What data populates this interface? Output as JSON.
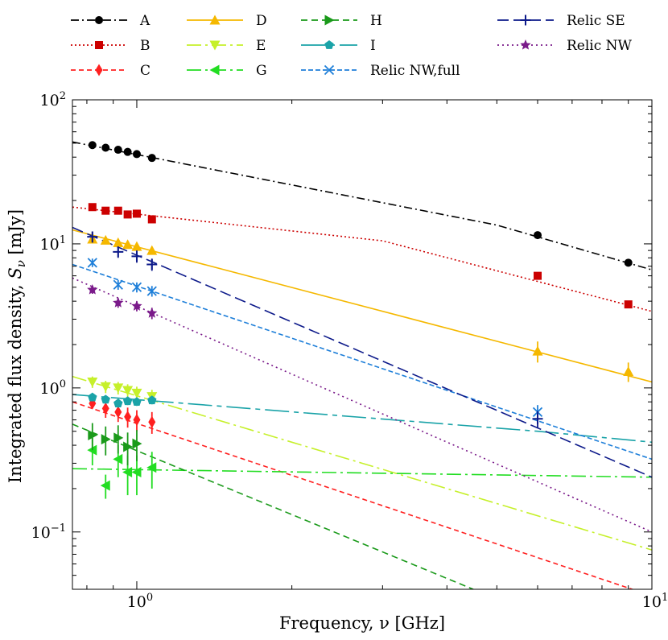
{
  "chart_data": {
    "type": "line",
    "xscale": "log",
    "yscale": "log",
    "xlabel": "Frequency, ν [GHz]",
    "ylabel": "Integrated flux density, S_ν [mJy]",
    "xlim": [
      0.75,
      10
    ],
    "ylim": [
      0.04,
      100
    ],
    "x_ticks": [
      {
        "value": 1,
        "base": "10",
        "exp": "0"
      },
      {
        "value": 10,
        "base": "10",
        "exp": "1"
      }
    ],
    "y_ticks": [
      {
        "value": 0.1,
        "base": "10",
        "exp": "−1"
      },
      {
        "value": 1,
        "base": "10",
        "exp": "0"
      },
      {
        "value": 10,
        "base": "10",
        "exp": "1"
      },
      {
        "value": 100,
        "base": "10",
        "exp": "2"
      }
    ],
    "series": [
      {
        "name": "A",
        "color": "#000000",
        "dash": "10,4,2,4",
        "marker": "circle",
        "fit": [
          [
            0.75,
            51
          ],
          [
            5.0,
            13.5
          ],
          [
            10,
            6.6
          ]
        ],
        "points": [
          [
            0.82,
            48.5,
            0
          ],
          [
            0.87,
            46.5,
            0
          ],
          [
            0.92,
            45,
            0
          ],
          [
            0.96,
            43.5,
            0
          ],
          [
            1.0,
            42,
            0
          ],
          [
            1.07,
            39.5,
            0
          ],
          [
            6.0,
            11.5,
            0
          ],
          [
            9.0,
            7.4,
            0
          ]
        ]
      },
      {
        "name": "B",
        "color": "#cc0000",
        "dash": "2,3",
        "marker": "square",
        "fit": [
          [
            0.75,
            18
          ],
          [
            3.0,
            10.5
          ],
          [
            10,
            3.4
          ]
        ],
        "points": [
          [
            0.82,
            18,
            0
          ],
          [
            0.87,
            17,
            0
          ],
          [
            0.92,
            17,
            0
          ],
          [
            0.96,
            16,
            0
          ],
          [
            1.0,
            16.2,
            0
          ],
          [
            1.07,
            14.8,
            0
          ],
          [
            6.0,
            6.0,
            0
          ],
          [
            9.0,
            3.8,
            0
          ]
        ]
      },
      {
        "name": "C",
        "color": "#ff2020",
        "dash": "6,4",
        "marker": "diamond",
        "fit": [
          [
            0.75,
            0.8
          ],
          [
            10,
            0.036
          ]
        ],
        "points": [
          [
            0.82,
            0.78,
            0.06
          ],
          [
            0.87,
            0.72,
            0.1
          ],
          [
            0.92,
            0.68,
            0.1
          ],
          [
            0.96,
            0.63,
            0.1
          ],
          [
            1.0,
            0.6,
            0.1
          ],
          [
            1.07,
            0.58,
            0.1
          ]
        ]
      },
      {
        "name": "D",
        "color": "#f5b800",
        "dash": "",
        "marker": "triangle-up",
        "fit": [
          [
            0.75,
            12.5
          ],
          [
            10,
            1.1
          ]
        ],
        "points": [
          [
            0.82,
            10.8,
            0
          ],
          [
            0.87,
            10.6,
            0
          ],
          [
            0.92,
            10.2,
            0
          ],
          [
            0.96,
            9.9,
            0
          ],
          [
            1.0,
            9.6,
            0
          ],
          [
            1.07,
            9.0,
            0
          ],
          [
            6.0,
            1.8,
            0.3
          ],
          [
            9.0,
            1.3,
            0.2
          ]
        ]
      },
      {
        "name": "E",
        "color": "#c6f02a",
        "dash": "18,5,3,5",
        "marker": "triangle-down",
        "fit": [
          [
            0.75,
            1.2
          ],
          [
            10,
            0.075
          ]
        ],
        "points": [
          [
            0.82,
            1.1,
            0.1
          ],
          [
            0.87,
            1.02,
            0.1
          ],
          [
            0.92,
            1.0,
            0.1
          ],
          [
            0.96,
            0.96,
            0.1
          ],
          [
            1.0,
            0.92,
            0.1
          ],
          [
            1.07,
            0.87,
            0.1
          ]
        ]
      },
      {
        "name": "G",
        "color": "#22dd22",
        "dash": "18,5,3,5",
        "marker": "triangle-left",
        "fit": [
          [
            0.75,
            0.275
          ],
          [
            10,
            0.24
          ]
        ],
        "points": [
          [
            0.82,
            0.37,
            0.08
          ],
          [
            0.87,
            0.21,
            0.04
          ],
          [
            0.92,
            0.32,
            0.08
          ],
          [
            0.96,
            0.26,
            0.08
          ],
          [
            1.0,
            0.26,
            0.08
          ],
          [
            1.07,
            0.28,
            0.08
          ]
        ]
      },
      {
        "name": "H",
        "color": "#1a9a1a",
        "dash": "8,5",
        "marker": "triangle-right",
        "fit": [
          [
            0.75,
            0.56
          ],
          [
            4.5,
            0.04
          ]
        ],
        "points": [
          [
            0.82,
            0.47,
            0.1
          ],
          [
            0.87,
            0.44,
            0.1
          ],
          [
            0.92,
            0.45,
            0.1
          ],
          [
            0.96,
            0.39,
            0.1
          ],
          [
            1.0,
            0.41,
            0.1
          ]
        ]
      },
      {
        "name": "I",
        "color": "#1aa3a8",
        "dash": "30,6,6,6",
        "marker": "pentagon",
        "fit": [
          [
            0.75,
            0.9
          ],
          [
            6.0,
            0.5
          ],
          [
            10,
            0.42
          ]
        ],
        "points": [
          [
            0.82,
            0.86,
            0.05
          ],
          [
            0.87,
            0.83,
            0.05
          ],
          [
            0.92,
            0.78,
            0.05
          ],
          [
            0.96,
            0.81,
            0.05
          ],
          [
            1.0,
            0.8,
            0.05
          ],
          [
            1.07,
            0.82,
            0.05
          ]
        ]
      },
      {
        "name": "Relic NW,full",
        "color": "#1e7fd9",
        "dash": "6,3",
        "marker": "x",
        "fit": [
          [
            0.75,
            7.2
          ],
          [
            10,
            0.32
          ]
        ],
        "points": [
          [
            0.82,
            7.4,
            0.5
          ],
          [
            0.92,
            5.2,
            0.4
          ],
          [
            1.0,
            5.0,
            0.4
          ],
          [
            1.07,
            4.7,
            0.4
          ],
          [
            6.0,
            0.68,
            0.08
          ]
        ]
      },
      {
        "name": "Relic SE",
        "color": "#0d1a8a",
        "dash": "14,6",
        "marker": "plus",
        "fit": [
          [
            0.75,
            13
          ],
          [
            10,
            0.24
          ]
        ],
        "points": [
          [
            0.82,
            11.2,
            1.0
          ],
          [
            0.92,
            8.8,
            0.8
          ],
          [
            1.0,
            8.2,
            0.8
          ],
          [
            1.07,
            7.2,
            0.7
          ],
          [
            6.0,
            0.61,
            0.08
          ]
        ]
      },
      {
        "name": "Relic NW",
        "color": "#7a1a8a",
        "dash": "2,4",
        "marker": "star",
        "fit": [
          [
            0.75,
            5.8
          ],
          [
            10,
            0.1
          ]
        ],
        "points": [
          [
            0.82,
            4.8,
            0.3
          ],
          [
            0.92,
            3.9,
            0.3
          ],
          [
            1.0,
            3.7,
            0.3
          ],
          [
            1.07,
            3.3,
            0.3
          ]
        ]
      }
    ]
  }
}
